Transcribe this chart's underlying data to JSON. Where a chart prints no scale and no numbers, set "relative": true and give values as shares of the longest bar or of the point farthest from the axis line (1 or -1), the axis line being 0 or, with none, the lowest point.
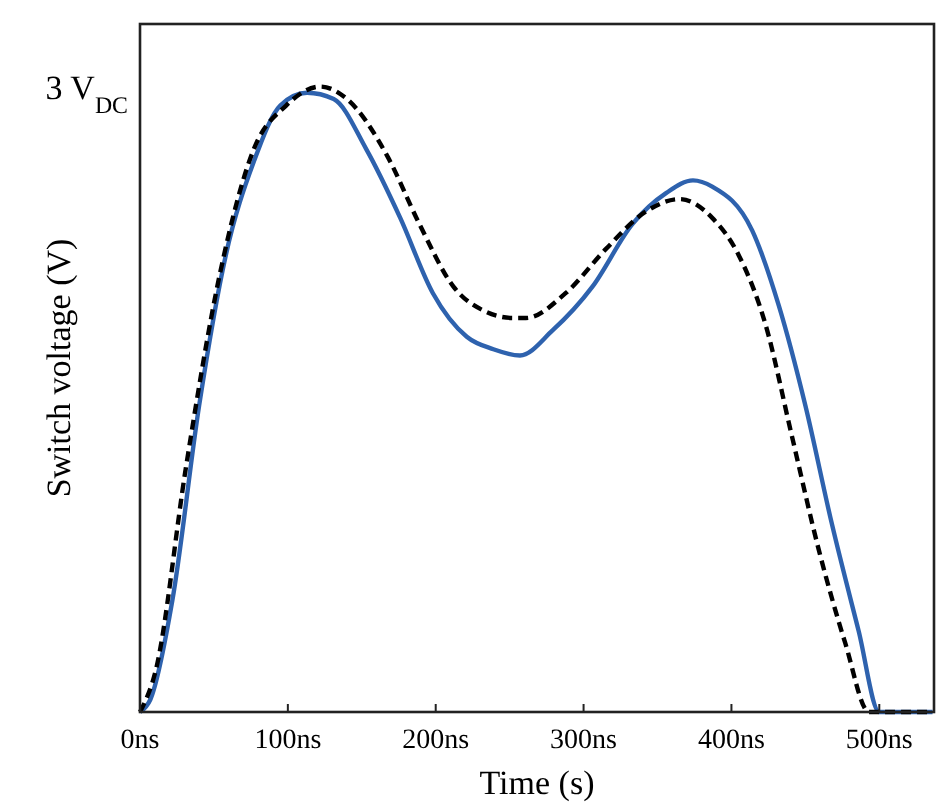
{
  "chart_data": {
    "type": "line",
    "xlabel": "Time (s)",
    "ylabel": "Switch voltage (V)",
    "relative": true,
    "annotations": [
      "3 V$_{DC}$"
    ],
    "xlim": [
      0,
      537
    ],
    "xticks": [
      {
        "value": 0,
        "label": "0ns"
      },
      {
        "value": 100,
        "label": "100ns"
      },
      {
        "value": 200,
        "label": "200ns"
      },
      {
        "value": 300,
        "label": "300ns"
      },
      {
        "value": 400,
        "label": "400ns"
      },
      {
        "value": 500,
        "label": "500ns"
      }
    ],
    "grid": false,
    "series": [
      {
        "color": "#2e62ae",
        "line_style": "solid",
        "x": [
          0,
          7,
          22,
          40,
          58,
          77,
          95,
          113,
          131,
          153,
          176,
          198,
          221,
          239,
          257,
          279,
          306,
          333,
          356,
          374,
          387,
          414,
          432,
          450,
          468,
          486,
          500,
          536
        ],
        "values": [
          0,
          0.02,
          0.18,
          0.49,
          0.73,
          0.88,
          0.97,
          0.99,
          0.98,
          0.9,
          0.79,
          0.67,
          0.6,
          0.58,
          0.57,
          0.61,
          0.68,
          0.78,
          0.83,
          0.85,
          0.84,
          0.77,
          0.65,
          0.49,
          0.3,
          0.13,
          0,
          0
        ]
      },
      {
        "color": "#000000",
        "line_style": "dashed",
        "x": [
          0,
          11,
          31,
          54,
          77,
          99,
          122,
          140,
          167,
          189,
          212,
          234,
          252,
          261,
          288,
          315,
          342,
          365,
          387,
          405,
          423,
          441,
          459,
          477,
          493,
          536
        ],
        "values": [
          0,
          0.07,
          0.39,
          0.7,
          0.9,
          0.97,
          1,
          0.98,
          0.89,
          0.78,
          0.68,
          0.64,
          0.63,
          0.63,
          0.67,
          0.74,
          0.8,
          0.82,
          0.79,
          0.73,
          0.62,
          0.44,
          0.26,
          0.11,
          0,
          0
        ]
      }
    ]
  }
}
